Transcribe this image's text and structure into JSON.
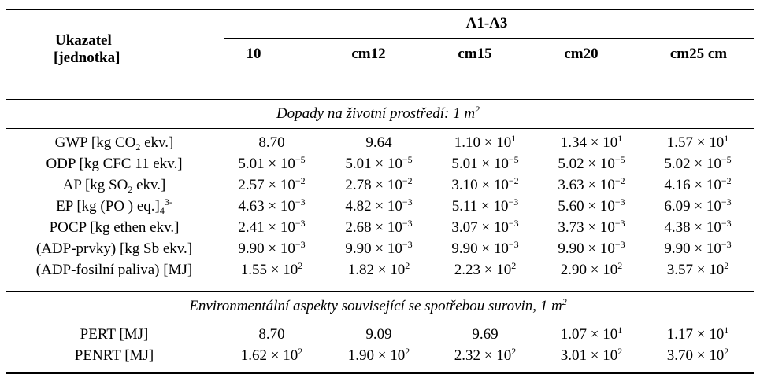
{
  "header": {
    "indicator_line1": "Ukazatel",
    "indicator_line2": "[jednotka]",
    "group": "A1-A3",
    "columns": [
      "10",
      "cm12",
      "cm15",
      "cm20",
      "cm25 cm"
    ]
  },
  "sections": [
    {
      "title": "Dopady na životní prostředí: 1 m",
      "title_sup": "2",
      "rows": [
        {
          "label_html": "GWP [kg CO<sub>2</sub> ekv.]",
          "values_html": [
            "8.70",
            "9.64",
            "1.10 × 10<sup>1</sup>",
            "1.34 × 10<sup>1</sup>",
            "1.57 × 10<sup>1</sup>"
          ]
        },
        {
          "label_html": "ODP [kg CFC 11 ekv.]",
          "values_html": [
            "5.01 × 10<sup>−5</sup>",
            "5.01 × 10<sup>−5</sup>",
            "5.01 × 10<sup>−5</sup>",
            "5.02 × 10<sup>−5</sup>",
            "5.02 × 10<sup>−5</sup>"
          ]
        },
        {
          "label_html": "AP [kg SO<sub>2</sub> ekv.]",
          "values_html": [
            "2.57 × 10<sup>−2</sup>",
            "2.78 × 10<sup>−2</sup>",
            "3.10 × 10<sup>−2</sup>",
            "3.63 × 10<sup>−2</sup>",
            "4.16 × 10<sup>−2</sup>"
          ]
        },
        {
          "label_html": "EP [kg (PO ) eq.]<sub>4</sub><sup>3-</sup>",
          "values_html": [
            "4.63 × 10<sup>−3</sup>",
            "4.82 × 10<sup>−3</sup>",
            "5.11 × 10<sup>−3</sup>",
            "5.60 × 10<sup>−3</sup>",
            "6.09 × 10<sup>−3</sup>"
          ]
        },
        {
          "label_html": "POCP [kg ethen ekv.]",
          "values_html": [
            "2.41 × 10<sup>−3</sup>",
            "2.68 × 10<sup>−3</sup>",
            "3.07 × 10<sup>−3</sup>",
            "3.73 × 10<sup>−3</sup>",
            "4.38 × 10<sup>−3</sup>"
          ]
        },
        {
          "label_html": "(ADP-prvky) [kg Sb ekv.]",
          "values_html": [
            "9.90 × 10<sup>−3</sup>",
            "9.90 × 10<sup>−3</sup>",
            "9.90 × 10<sup>−3</sup>",
            "9.90 × 10<sup>−3</sup>",
            "9.90 × 10<sup>−3</sup>"
          ]
        },
        {
          "label_html": "(ADP-fosilní paliva) [MJ]",
          "values_html": [
            "1.55 × 10<sup>2</sup>",
            "1.82 × 10<sup>2</sup>",
            "2.23 × 10<sup>2</sup>",
            "2.90 × 10<sup>2</sup>",
            "3.57 × 10<sup>2</sup>"
          ]
        }
      ]
    },
    {
      "title": "Environmentální aspekty související se spotřebou surovin, 1 m",
      "title_sup": "2",
      "rows": [
        {
          "label_html": "PERT [MJ]",
          "values_html": [
            "8.70",
            "9.09",
            "9.69",
            "1.07 × 10<sup>1</sup>",
            "1.17 × 10<sup>1</sup>"
          ]
        },
        {
          "label_html": "PENRT [MJ]",
          "values_html": [
            "1.62 × 10<sup>2</sup>",
            "1.90 × 10<sup>2</sup>",
            "2.32 × 10<sup>2</sup>",
            "3.01 × 10<sup>2</sup>",
            "3.70 × 10<sup>2</sup>"
          ]
        }
      ]
    }
  ]
}
